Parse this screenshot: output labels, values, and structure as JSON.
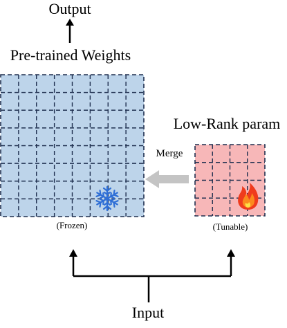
{
  "labels": {
    "output": "Output",
    "pretrained_title": "Pre-trained Weights",
    "lowrank_title": "Low-Rank param",
    "merge": "Merge",
    "frozen": "(Frozen)",
    "tunable": "(Tunable)",
    "input": "Input"
  },
  "icons": {
    "frozen": "snowflake-icon",
    "tunable": "flame-icon"
  },
  "colors": {
    "pretrained_fill": "#bdd4ea",
    "lowrank_fill": "#f7b7b8",
    "grid_line": "#1f2f4f",
    "snowflake": "#2f6fd6",
    "flame_outer": "#ef3b1d",
    "flame_inner": "#fb8a1e",
    "merge_arrow": "#c4c4c4"
  }
}
